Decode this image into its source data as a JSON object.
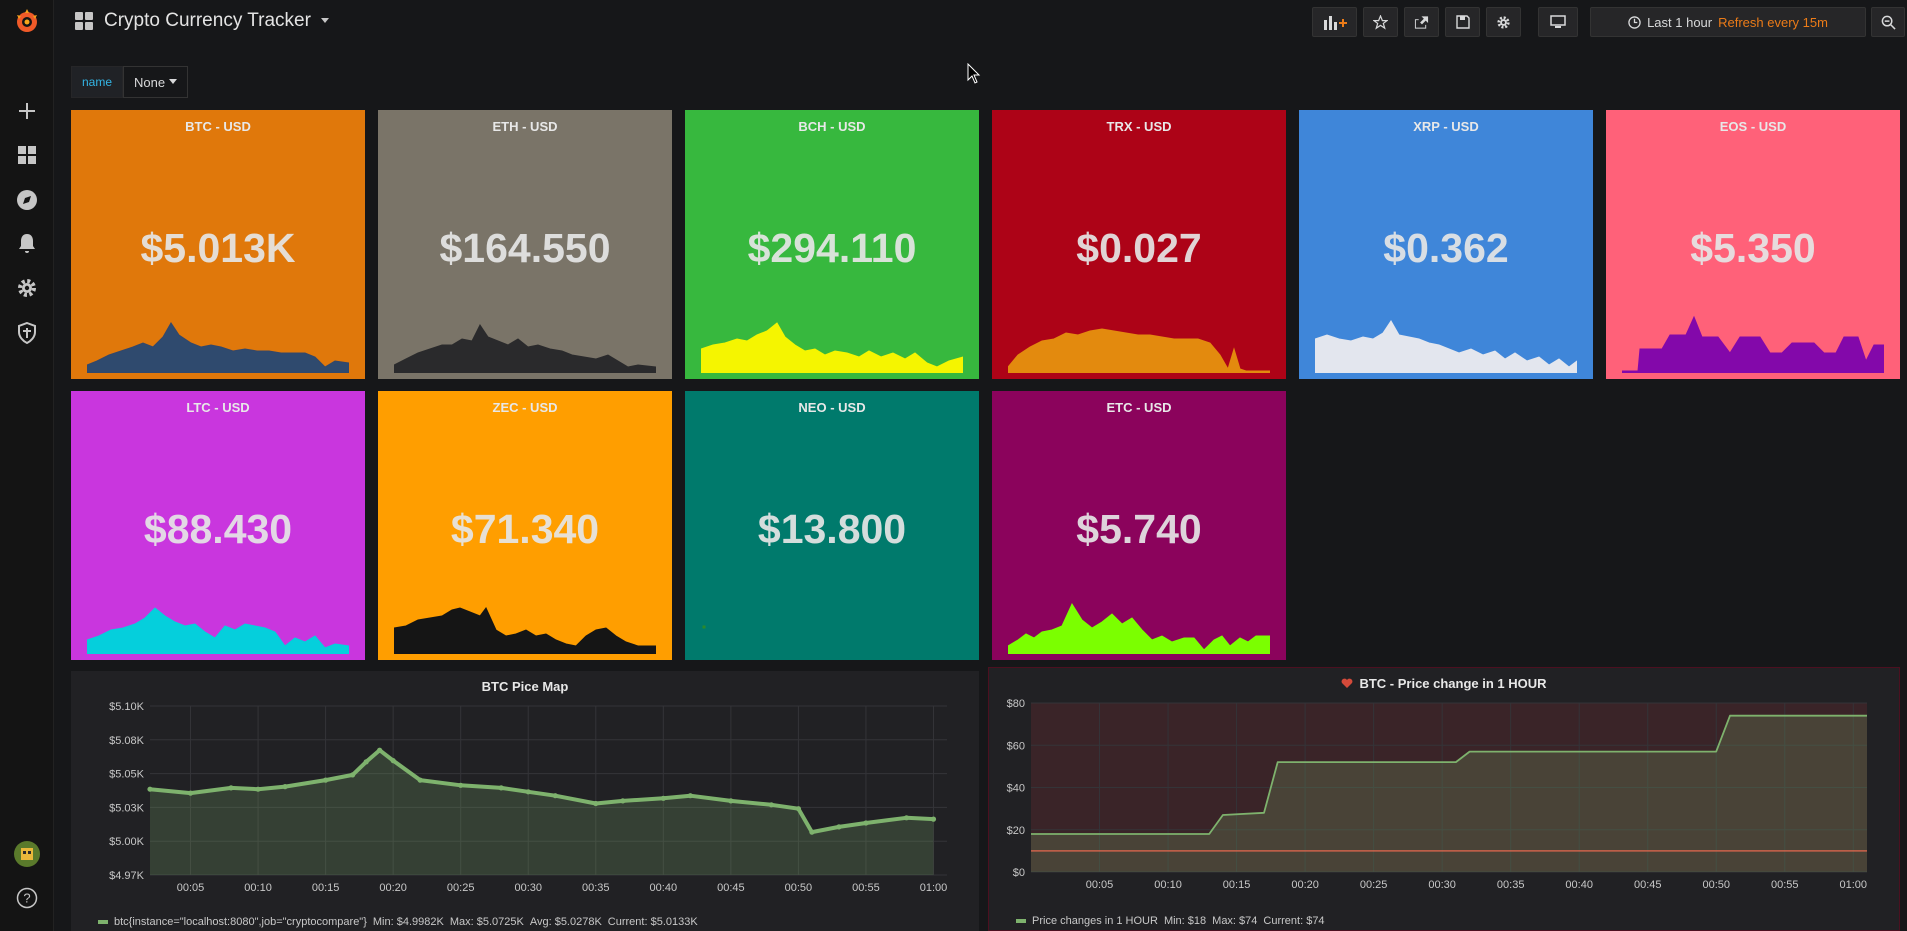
{
  "dashboard": {
    "title": "Crypto Currency Tracker"
  },
  "toolbar": {
    "time_range": "Last 1 hour",
    "refresh": "Refresh every 15m"
  },
  "variables": {
    "name_label": "name",
    "name_value": "None"
  },
  "stats": [
    {
      "title": "BTC - USD",
      "value": "$5.013K",
      "bg": "#e0780b",
      "spark": "#2f4a6e",
      "line": "#33476a"
    },
    {
      "title": "ETH - USD",
      "value": "$164.550",
      "bg": "#7a7468",
      "spark": "#2a2a2c",
      "line": "#2a2a2c"
    },
    {
      "title": "BCH - USD",
      "value": "$294.110",
      "bg": "#37b83e",
      "spark": "#f5f500",
      "line": "#f5f500"
    },
    {
      "title": "TRX - USD",
      "value": "$0.027",
      "bg": "#ad0317",
      "spark": "#e38a0e",
      "line": "#e38a0e"
    },
    {
      "title": "XRP - USD",
      "value": "$0.362",
      "bg": "#3f86d9",
      "spark": "#e3e6ee",
      "line": "#e3e6ee"
    },
    {
      "title": "EOS - USD",
      "value": "$5.350",
      "bg": "#ff6179",
      "spark": "#8308aa",
      "line": "#8308aa"
    },
    {
      "title": "LTC - USD",
      "value": "$88.430",
      "bg": "#c936de",
      "spark": "#05cfdc",
      "line": "#05cfdc"
    },
    {
      "title": "ZEC - USD",
      "value": "$71.340",
      "bg": "#ff9e00",
      "spark": "#151515",
      "line": "#151515"
    },
    {
      "title": "NEO - USD",
      "value": "$13.800",
      "bg": "#007a6c",
      "spark": "#2b8a2a",
      "line": "#2b8a2a"
    },
    {
      "title": "ETC - USD",
      "value": "$5.740",
      "bg": "#8b035c",
      "spark": "#7bff00",
      "line": "#7bff00"
    }
  ],
  "chart_data": [
    {
      "type": "line",
      "title": "BTC Pice Map",
      "x_ticks": [
        "00:05",
        "00:10",
        "00:15",
        "00:20",
        "00:25",
        "00:30",
        "00:35",
        "00:40",
        "00:45",
        "00:50",
        "00:55",
        "01:00"
      ],
      "y_ticks": [
        "$5.10K",
        "$5.08K",
        "$5.05K",
        "$5.03K",
        "$5.00K",
        "$4.97K"
      ],
      "ylim": [
        4970,
        5100
      ],
      "series": [
        {
          "name": "btc{instance=\"localhost:8080\",job=\"cryptocompare\"}",
          "x": [
            "00:02",
            "00:05",
            "00:08",
            "00:10",
            "00:12",
            "00:15",
            "00:17",
            "00:18",
            "00:19",
            "00:20",
            "00:22",
            "00:25",
            "00:28",
            "00:30",
            "00:32",
            "00:35",
            "00:37",
            "00:40",
            "00:42",
            "00:45",
            "00:48",
            "00:50",
            "00:51",
            "00:53",
            "00:55",
            "00:58",
            "01:00"
          ],
          "values": [
            5036,
            5033,
            5037,
            5036,
            5038,
            5043,
            5047,
            5057,
            5066,
            5058,
            5043,
            5039,
            5037,
            5034,
            5031,
            5025,
            5027,
            5029,
            5031,
            5027,
            5024,
            5021,
            5003,
            5007,
            5010,
            5014,
            5013
          ]
        }
      ],
      "legend": {
        "min": "Min: $4.9982K",
        "max": "Max: $5.0725K",
        "avg": "Avg: $5.0278K",
        "current": "Current: $5.0133K"
      },
      "grid": true
    },
    {
      "type": "line",
      "title": "BTC - Price change in 1 HOUR",
      "x_ticks": [
        "00:05",
        "00:10",
        "00:15",
        "00:20",
        "00:25",
        "00:30",
        "00:35",
        "00:40",
        "00:45",
        "00:50",
        "00:55",
        "01:00"
      ],
      "y_ticks": [
        "$80",
        "$60",
        "$40",
        "$20",
        "$0"
      ],
      "ylim": [
        0,
        80
      ],
      "threshold": 10,
      "series": [
        {
          "name": "Price changes in 1 HOUR",
          "x": [
            "00:00",
            "00:13",
            "00:14",
            "00:17",
            "00:18",
            "00:31",
            "00:32",
            "00:50",
            "00:51",
            "01:01"
          ],
          "values": [
            18,
            18,
            27,
            28,
            52,
            52,
            57,
            57,
            74,
            74
          ]
        }
      ],
      "legend": {
        "min": "Min: $18",
        "max": "Max: $74",
        "current": "Current: $74"
      },
      "alert": true,
      "grid": true
    }
  ]
}
